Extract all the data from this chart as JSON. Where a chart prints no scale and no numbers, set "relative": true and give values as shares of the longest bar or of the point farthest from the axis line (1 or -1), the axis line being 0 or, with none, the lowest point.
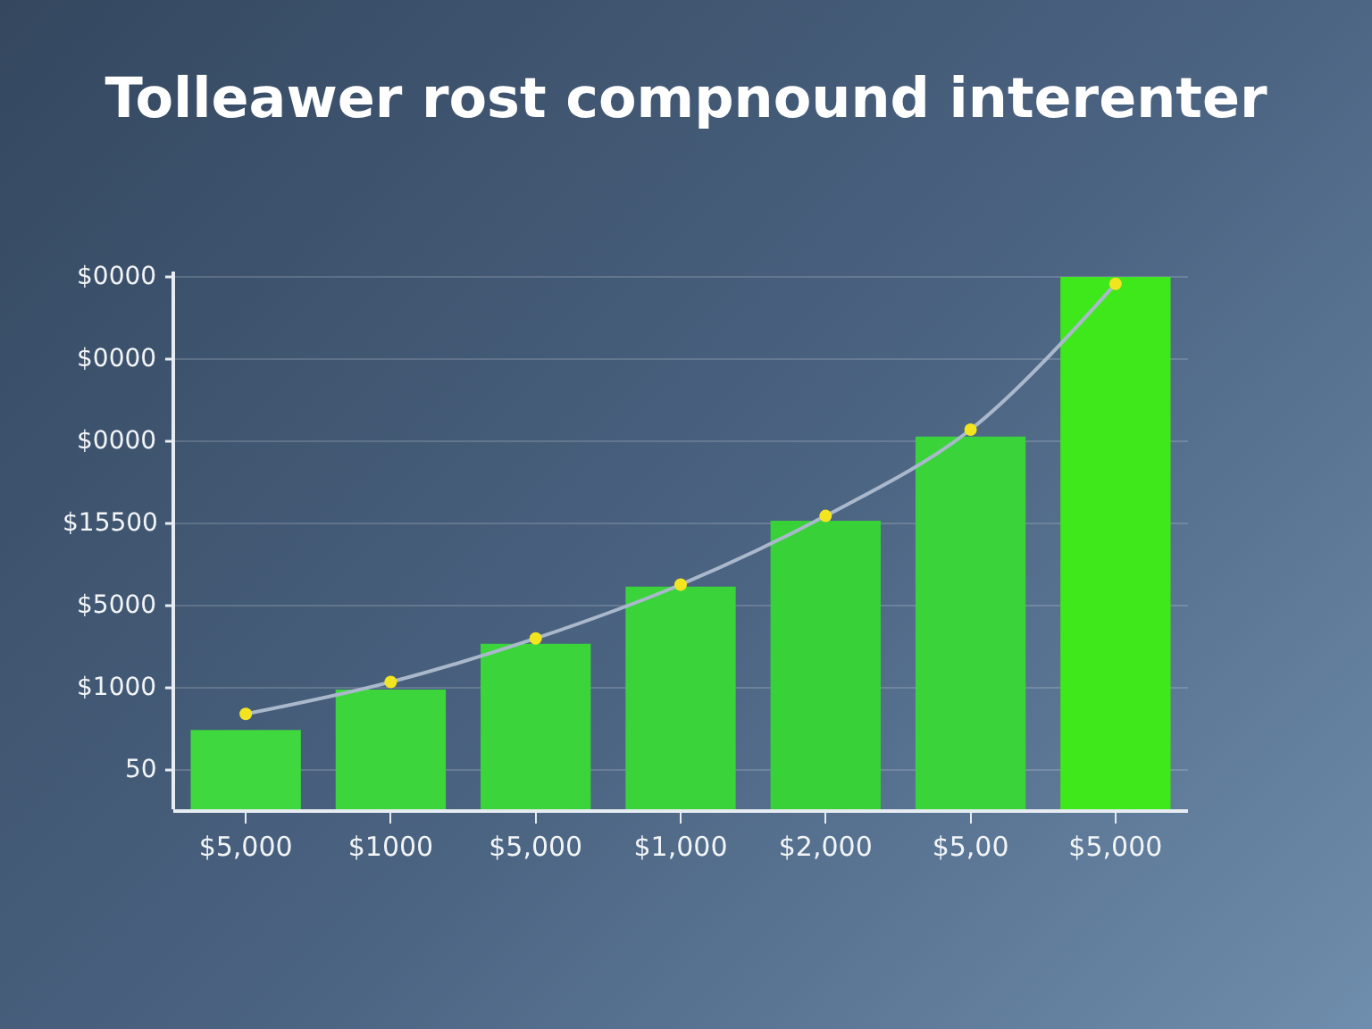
{
  "chart_data": {
    "type": "bar",
    "title": "Tolleawer rost compnound interenter",
    "categories": [
      "$5,000",
      "$1000",
      "$5,000",
      "$1,000",
      "$2,000",
      "$5,00",
      "$5,000"
    ],
    "series": [
      {
        "colors": [
          "#3fd83f",
          "#3cd63c",
          "#3bd43b",
          "#3ad33a",
          "#38d238",
          "#3ad43a",
          "#3ee81a"
        ],
        "values": [
          0.149,
          0.225,
          0.311,
          0.418,
          0.542,
          0.7,
          1
        ]
      },
      {
        "type": "line",
        "color": "#aab8cc",
        "values": [
          0.179,
          0.239,
          0.321,
          0.422,
          0.551,
          0.713,
          0.987
        ]
      }
    ],
    "relative": true,
    "marker": "circle",
    "annotations": [
      "$0000",
      "$0000",
      "$0000",
      "$15500",
      "$5000",
      "$1000",
      "50"
    ],
    "grid": "y"
  }
}
